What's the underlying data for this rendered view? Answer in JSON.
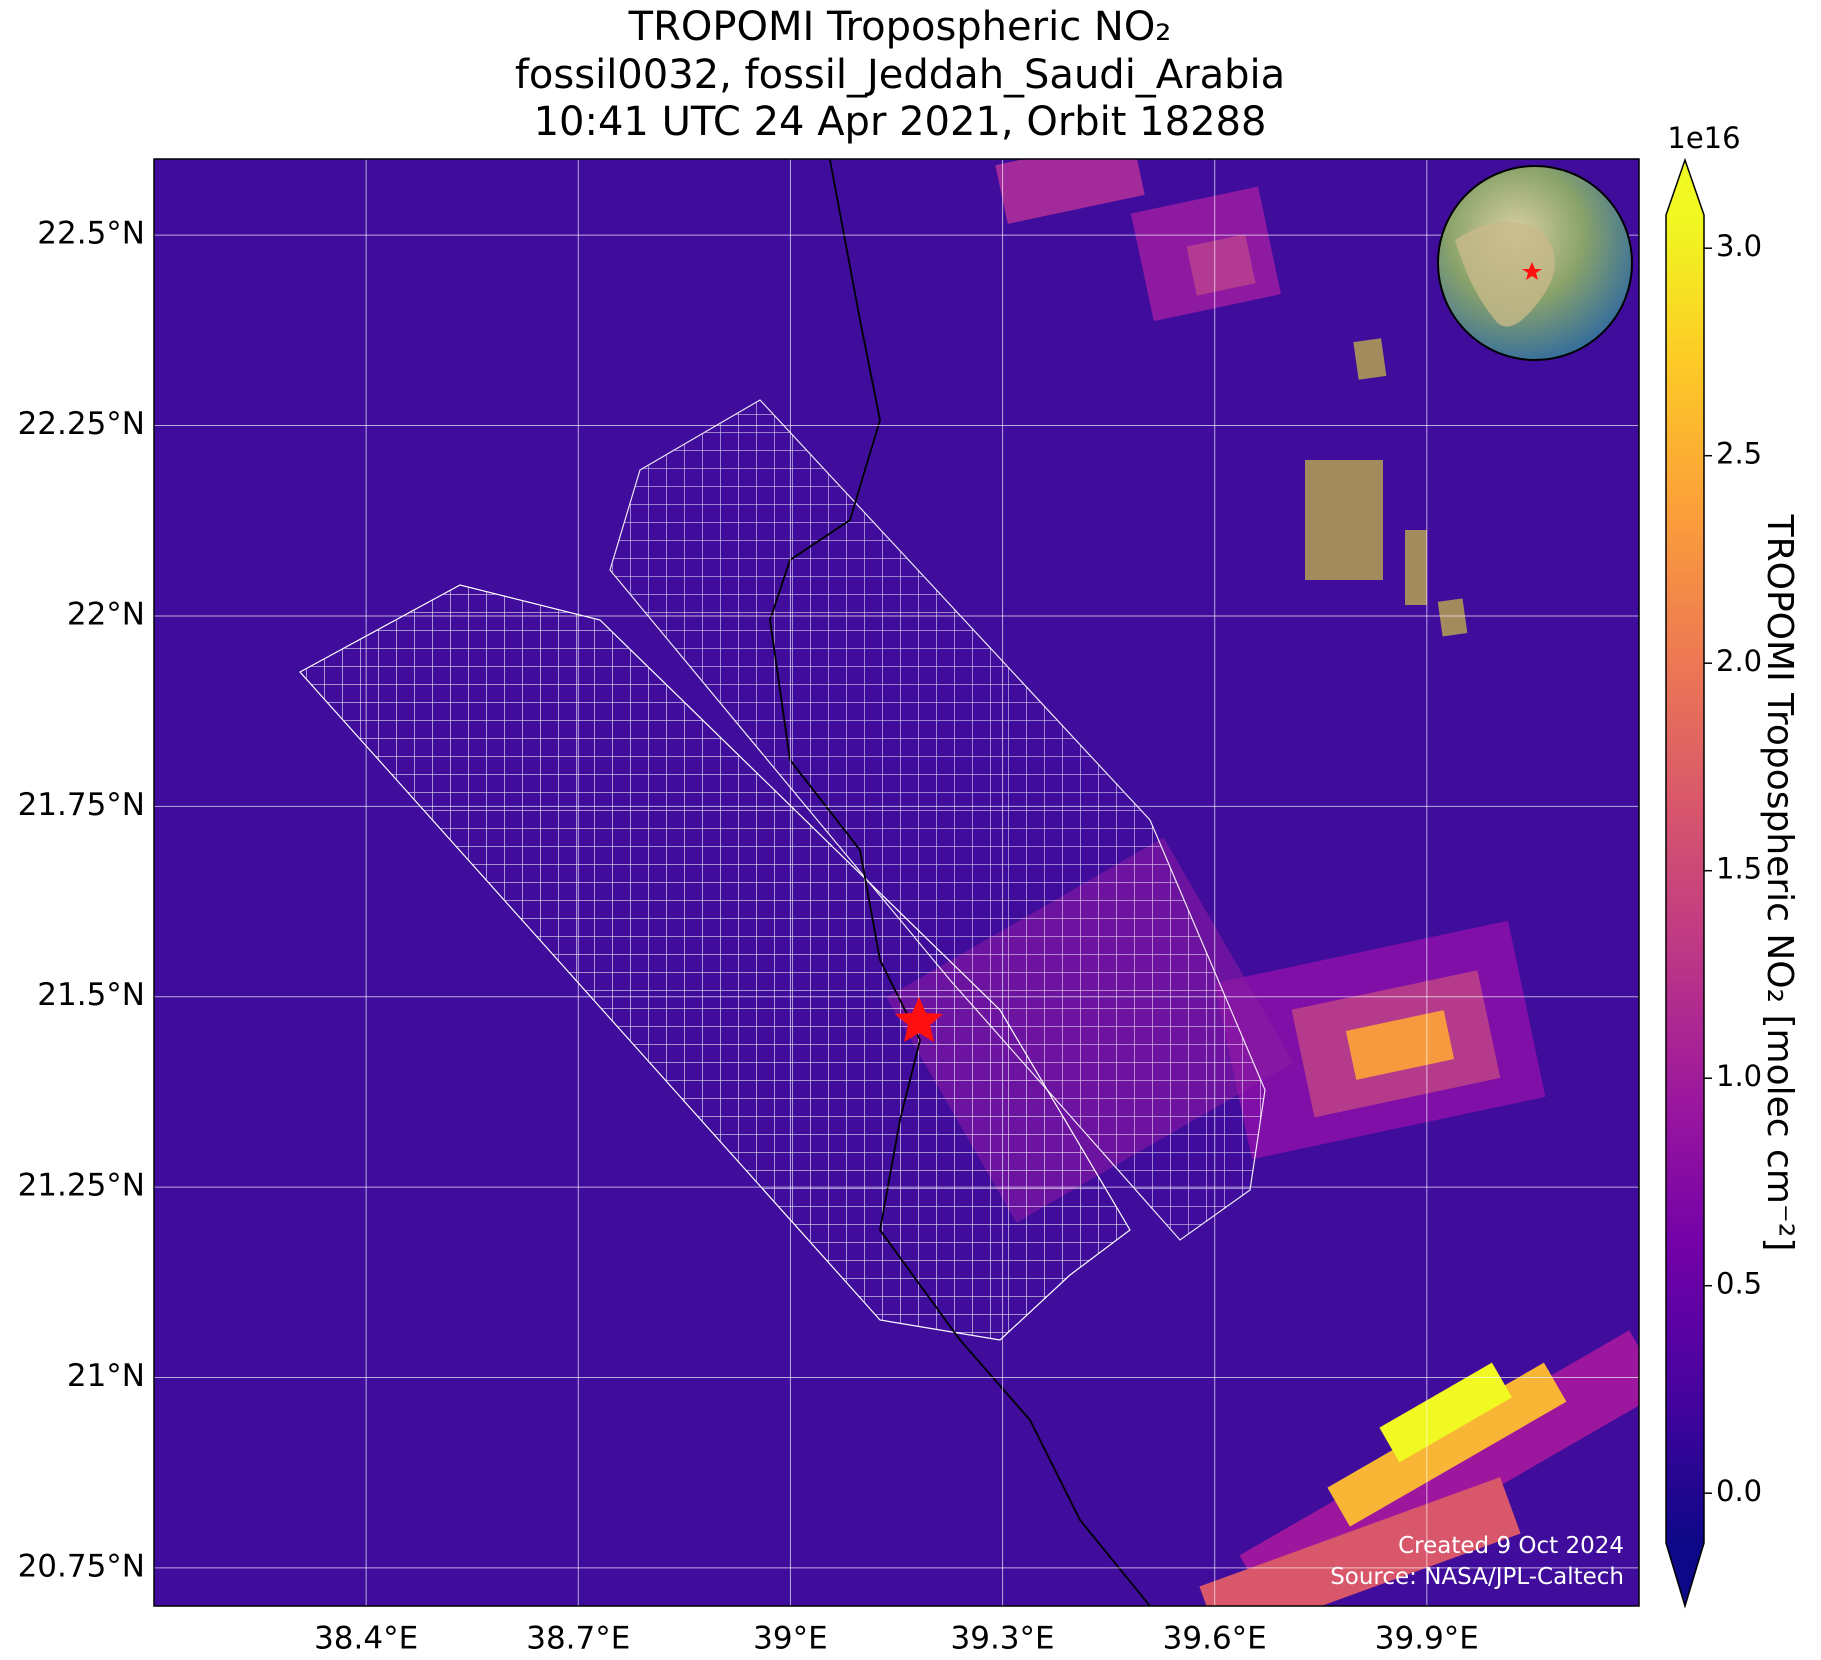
{
  "title": [
    "TROPOMI Tropospheric NO₂",
    "fossil0032, fossil_Jeddah_Saudi_Arabia",
    "10:41 UTC 24 Apr 2021, Orbit 18288"
  ],
  "map": {
    "xlim": [
      38.1,
      40.2
    ],
    "ylim": [
      20.7,
      22.6
    ],
    "xticks": [
      {
        "value": 38.4,
        "label": "38.4°E"
      },
      {
        "value": 38.7,
        "label": "38.7°E"
      },
      {
        "value": 39.0,
        "label": "39°E"
      },
      {
        "value": 39.3,
        "label": "39.3°E"
      },
      {
        "value": 39.6,
        "label": "39.6°E"
      },
      {
        "value": 39.9,
        "label": "39.9°E"
      }
    ],
    "yticks": [
      {
        "value": 20.75,
        "label": "20.75°N"
      },
      {
        "value": 21.0,
        "label": "21°N"
      },
      {
        "value": 21.25,
        "label": "21.25°N"
      },
      {
        "value": 21.5,
        "label": "21.5°N"
      },
      {
        "value": 21.75,
        "label": "21.75°N"
      },
      {
        "value": 22.0,
        "label": "22°N"
      },
      {
        "value": 22.25,
        "label": "22.25°N"
      },
      {
        "value": 22.5,
        "label": "22.5°N"
      }
    ],
    "grid": true
  },
  "colorbar": {
    "label": "TROPOMI Tropospheric NO₂ [molec cm⁻²]",
    "offset_label": "1e16",
    "lim": [
      -0.12,
      3.08
    ],
    "ticks": [
      {
        "value": 0,
        "label": "0.0"
      },
      0.5,
      {
        "value": 1,
        "label": "1.0"
      },
      1.5,
      {
        "value": 2,
        "label": "2.0"
      },
      2.5,
      {
        "value": 3,
        "label": "3.0"
      }
    ],
    "colors": [
      "#0d0887",
      "#46039f",
      "#7201a8",
      "#9c179e",
      "#bd3786",
      "#d8576b",
      "#ed7953",
      "#fb9f3a",
      "#fdca26",
      "#f0f921"
    ]
  },
  "credits": [
    "Created 9 Oct 2024",
    "Source: NASA/JPL-Caltech"
  ]
}
